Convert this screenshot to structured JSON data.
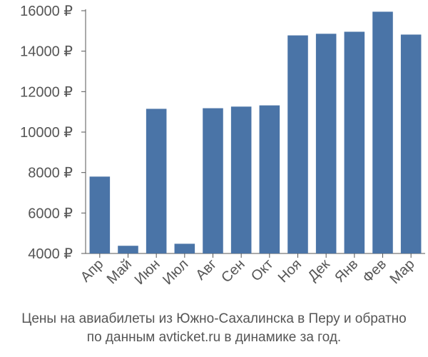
{
  "chart_data": {
    "type": "bar",
    "categories": [
      "Апр",
      "Май",
      "Июн",
      "Июл",
      "Авг",
      "Сен",
      "Окт",
      "Ноя",
      "Дек",
      "Янв",
      "Фев",
      "Мар"
    ],
    "values": [
      7800,
      4380,
      11150,
      4480,
      11180,
      11260,
      11320,
      14780,
      14860,
      14960,
      15950,
      14820
    ],
    "ylim": [
      4000,
      16000
    ],
    "yticks": [
      4000,
      6000,
      8000,
      10000,
      12000,
      14000,
      16000
    ],
    "ytick_labels": [
      "4000 ₽",
      "6000 ₽",
      "8000 ₽",
      "10000 ₽",
      "12000 ₽",
      "14000 ₽",
      "16000 ₽"
    ],
    "bar_color": "#4a74a7",
    "grid": false,
    "caption": [
      "Цены на авиабилеты из Южно-Сахалинска в Перу и обратно",
      "по данным avticket.ru в динамике за год."
    ]
  }
}
